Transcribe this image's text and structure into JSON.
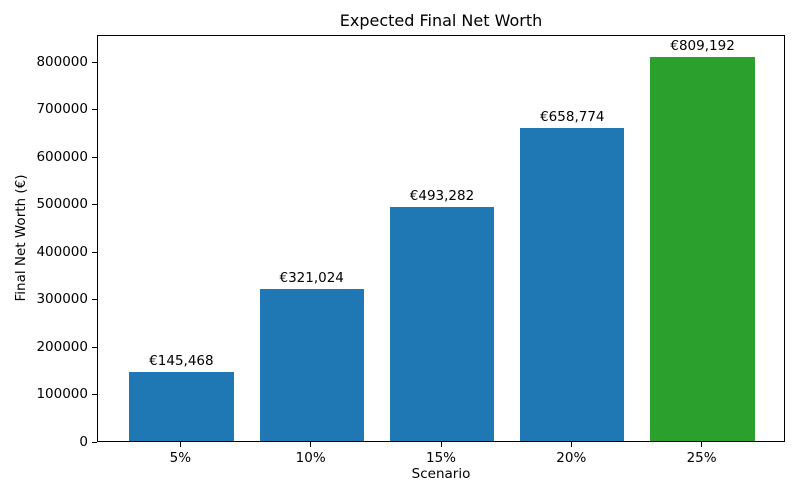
{
  "chart_data": {
    "type": "bar",
    "title": "Expected Final Net Worth",
    "xlabel": "Scenario",
    "ylabel": "Final Net Worth (€)",
    "categories": [
      "5%",
      "10%",
      "15%",
      "20%",
      "25%"
    ],
    "values": [
      145468,
      321024,
      493282,
      658774,
      809192
    ],
    "bar_labels": [
      "€145,468",
      "€321,024",
      "€493,282",
      "€658,774",
      "€809,192"
    ],
    "bar_colors": [
      "#1f77b4",
      "#1f77b4",
      "#1f77b4",
      "#1f77b4",
      "#2ca02c"
    ],
    "y_ticks": [
      0,
      100000,
      200000,
      300000,
      400000,
      500000,
      600000,
      700000,
      800000
    ],
    "y_tick_labels": [
      "0",
      "100000",
      "200000",
      "300000",
      "400000",
      "500000",
      "600000",
      "700000",
      "800000"
    ],
    "ylim": [
      0,
      857000
    ],
    "grid": false,
    "legend": null,
    "background_color": "#ffffff",
    "spine_color": "#000000",
    "text_color": "#000000"
  }
}
